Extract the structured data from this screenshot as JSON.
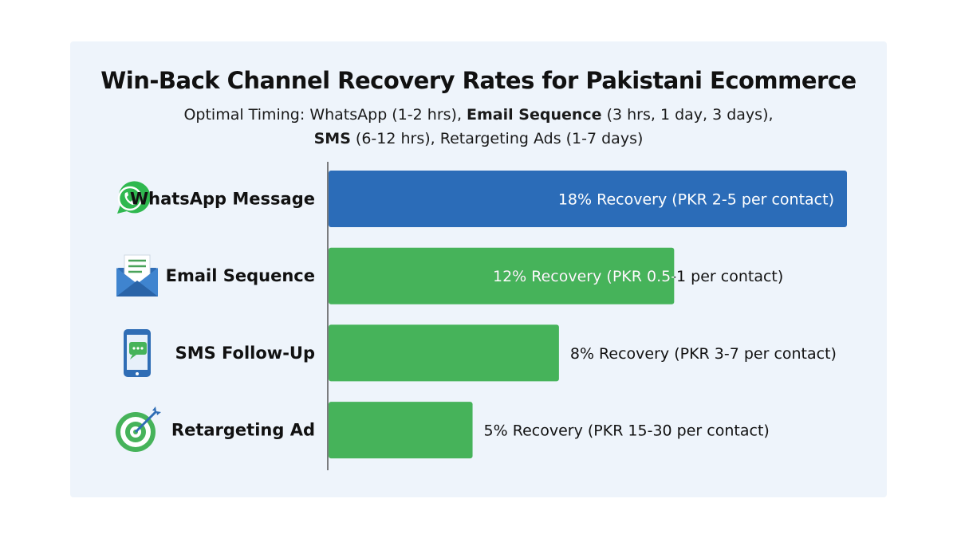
{
  "chart_data": {
    "type": "bar",
    "orientation": "horizontal",
    "title": "Win-Back Channel Recovery Rates for Pakistani Ecommerce",
    "subtitle": {
      "line1": [
        {
          "text": "Optimal Timing: WhatsApp (1-2 hrs), ",
          "bold": false
        },
        {
          "text": "Email Sequence",
          "bold": true
        },
        {
          "text": " (3 hrs, 1 day, 3 days),",
          "bold": false
        }
      ],
      "line2": [
        {
          "text": "SMS",
          "bold": true
        },
        {
          "text": " (6-12 hrs), Retargeting Ads (1-7 days)",
          "bold": false
        }
      ]
    },
    "categories": [
      "WhatsApp Message",
      "Email Sequence",
      "SMS Follow-Up",
      "Retargeting Ad"
    ],
    "values": [
      18,
      12,
      8,
      5
    ],
    "unit": "%",
    "data_labels": [
      "18% Recovery (PKR 2-5 per contact)",
      "12% Recovery (PKR 0.5-1 per contact)",
      "8% Recovery (PKR 3-7 per contact)",
      "5% Recovery (PKR 15-30 per contact)"
    ],
    "colors": [
      "#2b6cb8",
      "#46b35a",
      "#46b35a",
      "#46b35a"
    ],
    "icons": [
      "whatsapp-icon",
      "email-icon",
      "sms-phone-icon",
      "target-icon"
    ],
    "xlim": [
      0,
      18
    ],
    "grid": false,
    "legend": "none"
  }
}
